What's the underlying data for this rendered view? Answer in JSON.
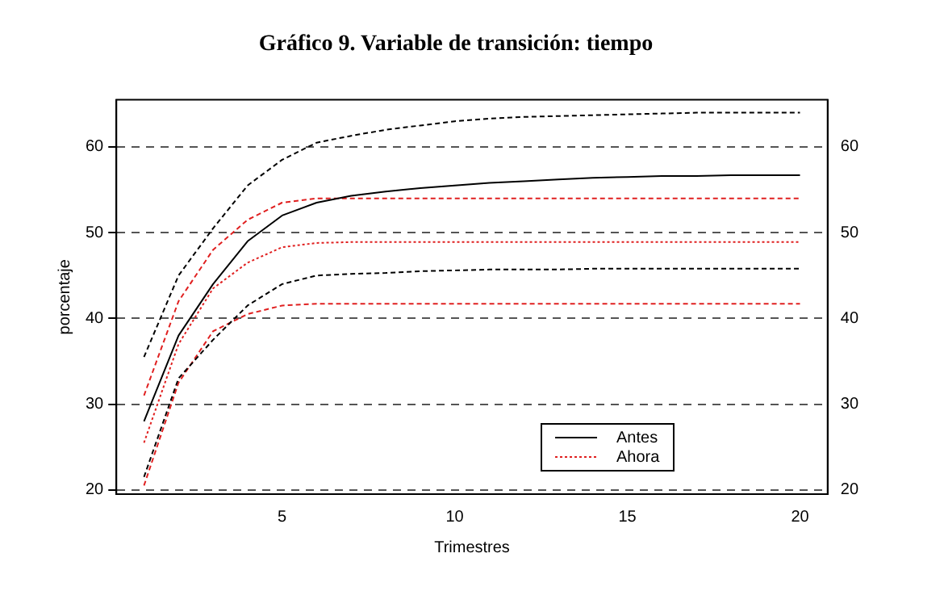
{
  "chart_data": {
    "type": "line",
    "title": "Gráfico 9. Variable de transición: tiempo",
    "xlabel": "Trimestres",
    "ylabel": "porcentaje",
    "x": [
      1,
      2,
      3,
      4,
      5,
      6,
      7,
      8,
      9,
      10,
      11,
      12,
      13,
      14,
      15,
      16,
      17,
      18,
      19,
      20
    ],
    "series": [
      {
        "name": "Antes",
        "color": "#000000",
        "line_style": "solid",
        "values": [
          28,
          38,
          44,
          49,
          52,
          53.5,
          54.3,
          54.8,
          55.2,
          55.5,
          55.8,
          56,
          56.2,
          56.4,
          56.5,
          56.6,
          56.6,
          56.7,
          56.7,
          56.7
        ]
      },
      {
        "color": "#000000",
        "line_style": "dashed",
        "values": [
          35.5,
          45,
          50.5,
          55.5,
          58.5,
          60.5,
          61.3,
          62,
          62.5,
          63,
          63.3,
          63.5,
          63.6,
          63.7,
          63.8,
          63.9,
          64,
          64,
          64,
          64
        ]
      },
      {
        "color": "#000000",
        "line_style": "dashed",
        "values": [
          21.5,
          33,
          37.5,
          41.5,
          44,
          45,
          45.2,
          45.3,
          45.5,
          45.6,
          45.7,
          45.7,
          45.7,
          45.8,
          45.8,
          45.8,
          45.8,
          45.8,
          45.8,
          45.8
        ]
      },
      {
        "name": "Ahora",
        "color": "#e02020",
        "line_style": "dotted",
        "values": [
          25.5,
          37,
          43.5,
          46.5,
          48.3,
          48.8,
          48.9,
          48.9,
          48.9,
          48.9,
          48.9,
          48.9,
          48.9,
          48.9,
          48.9,
          48.9,
          48.9,
          48.9,
          48.9,
          48.9
        ]
      },
      {
        "color": "#e02020",
        "line_style": "dashed",
        "values": [
          31,
          42,
          48,
          51.5,
          53.5,
          54,
          54,
          54,
          54,
          54,
          54,
          54,
          54,
          54,
          54,
          54,
          54,
          54,
          54,
          54
        ]
      },
      {
        "color": "#e02020",
        "line_style": "dashed",
        "values": [
          20.5,
          32.5,
          38.5,
          40.5,
          41.5,
          41.7,
          41.7,
          41.7,
          41.7,
          41.7,
          41.7,
          41.7,
          41.7,
          41.7,
          41.7,
          41.7,
          41.7,
          41.7,
          41.7,
          41.7
        ]
      }
    ],
    "xlim": [
      0.2,
      20.8
    ],
    "xticks": [
      5,
      10,
      15,
      20
    ],
    "ylim": [
      19.5,
      65.5
    ],
    "yticks": [
      20,
      30,
      40,
      50,
      60
    ],
    "y2lim": [
      19.5,
      65.5
    ],
    "y2ticks": [
      20,
      30,
      40,
      50,
      60
    ],
    "grid": "y",
    "legend": "bottom right"
  }
}
